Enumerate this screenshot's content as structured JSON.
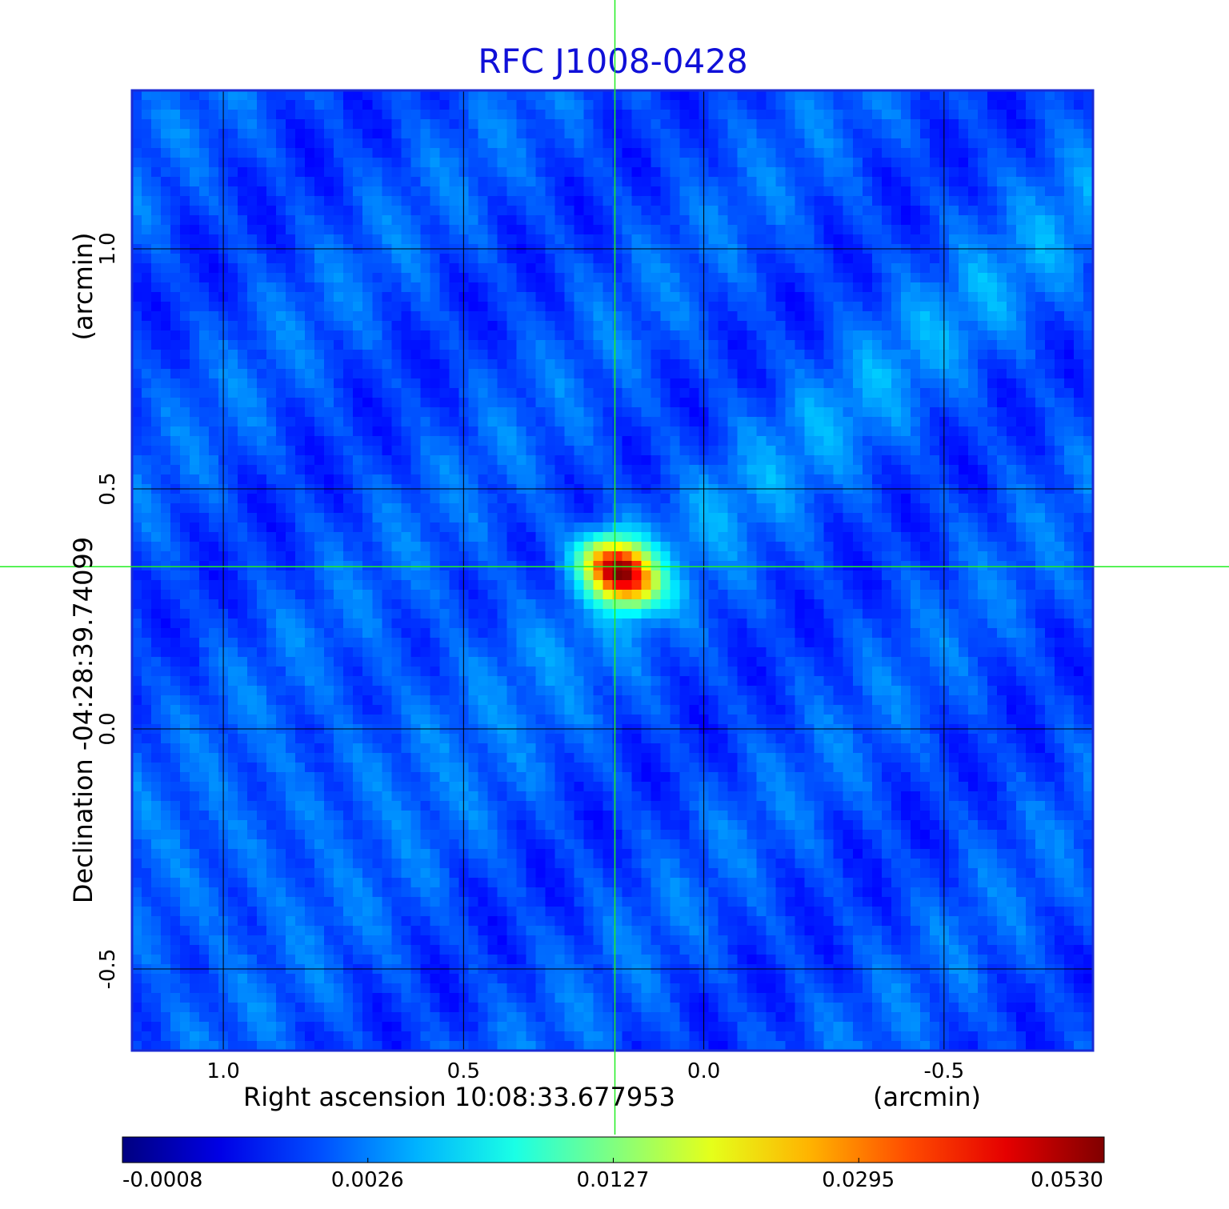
{
  "chart_data": {
    "type": "heatmap",
    "title": "RFC J1008-0428",
    "xlabel": "Right ascension  10:08:33.677953",
    "xunit": "(arcmin)",
    "ylabel": "Declination  -04:28:39.74099",
    "yunit": "(arcmin)",
    "x_ticks": [
      "1.0",
      "0.5",
      "0.0",
      "-0.5"
    ],
    "x_tick_values": [
      1.0,
      0.5,
      0.0,
      -0.5
    ],
    "y_ticks": [
      "1.0",
      "0.5",
      "0.0",
      "-0.5"
    ],
    "y_tick_values": [
      1.0,
      0.5,
      0.0,
      -0.5
    ],
    "xlim": [
      1.19,
      -0.81
    ],
    "ylim": [
      -0.67,
      1.33
    ],
    "grid": true,
    "crosshair": {
      "x": 0.185,
      "y": 0.338,
      "color": "#22ee22"
    },
    "peak": {
      "x": 0.185,
      "y": 0.338,
      "value": 0.053
    },
    "colormap": "jet",
    "colorbar_ticks": [
      "-0.0008",
      "0.0026",
      "0.0127",
      "0.0295",
      "0.0530"
    ],
    "colorbar_values": [
      -0.0008,
      0.0026,
      0.0127,
      0.0295,
      0.053
    ]
  }
}
